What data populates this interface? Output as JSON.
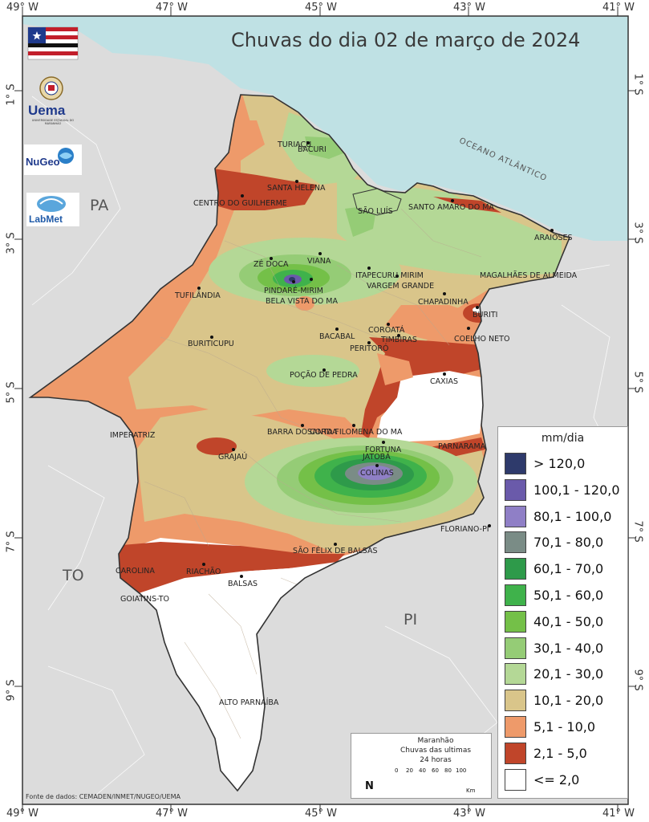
{
  "title": "Chuvas do dia 02 de março de 2024",
  "axes": {
    "lon_ticks": [
      "49° W",
      "47° W",
      "45° W",
      "43° W",
      "41° W"
    ],
    "lat_ticks": [
      "1° S",
      "3° S",
      "5° S",
      "7° S",
      "9° S"
    ]
  },
  "regions": {
    "pa": "PA",
    "to": "TO",
    "pi": "PI",
    "ocean": "OCEANO ATLÂNTICO"
  },
  "logos": {
    "uema": "Uema",
    "uema_sub": "UNIVERSIDADE ESTADUAL DO MARANHÃO",
    "nugeo": "NuGeo",
    "labmet": "LabMet"
  },
  "cities": [
    {
      "name": "TURIAÇU"
    },
    {
      "name": "BACURI"
    },
    {
      "name": "SANTA HELENA"
    },
    {
      "name": "CENTRO DO GUILHERME"
    },
    {
      "name": "SÃO LUÍS"
    },
    {
      "name": "SANTO AMARO DO MA"
    },
    {
      "name": "ARAIOSES"
    },
    {
      "name": "ZÉ DOCA"
    },
    {
      "name": "VIANA"
    },
    {
      "name": "ITAPECURU MIRIM"
    },
    {
      "name": "MAGALHÃES DE ALMEIDA"
    },
    {
      "name": "PINDARÉ-MIRIM"
    },
    {
      "name": "VARGEM GRANDE"
    },
    {
      "name": "TUFILÂNDIA"
    },
    {
      "name": "BELA VISTA DO MA"
    },
    {
      "name": "CHAPADINHA"
    },
    {
      "name": "BURITI"
    },
    {
      "name": "BACABAL"
    },
    {
      "name": "COROATÁ"
    },
    {
      "name": "BURITICUPU"
    },
    {
      "name": "TIMBIRAS"
    },
    {
      "name": "COELHO NETO"
    },
    {
      "name": "PERITORÓ"
    },
    {
      "name": "POÇÃO DE PEDRA"
    },
    {
      "name": "CAXIAS"
    },
    {
      "name": "BARRA DO CORDA"
    },
    {
      "name": "SANTA FILOMENA DO MA"
    },
    {
      "name": "IMPERATRIZ"
    },
    {
      "name": "FORTUNA"
    },
    {
      "name": "PARNARAMA"
    },
    {
      "name": "GRAJAÚ"
    },
    {
      "name": "JATOBÁ"
    },
    {
      "name": "COLINAS"
    },
    {
      "name": "FLORIANO-PI"
    },
    {
      "name": "SÃO FÉLIX DE BALSAS"
    },
    {
      "name": "CAROLINA"
    },
    {
      "name": "RIACHÃO"
    },
    {
      "name": "BALSAS"
    },
    {
      "name": "GOIATINS-TO"
    },
    {
      "name": "ALTO PARNAÍBA"
    }
  ],
  "legend": {
    "title": "mm/dia",
    "items": [
      {
        "label": "> 120,0",
        "color": "#2e3a6b"
      },
      {
        "label": "100,1 - 120,0",
        "color": "#6a5aaa"
      },
      {
        "label": "80,1 - 100,0",
        "color": "#8f7fc6"
      },
      {
        "label": "70,1 - 80,0",
        "color": "#7a8c86"
      },
      {
        "label": "60,1 - 70,0",
        "color": "#2e9a4a"
      },
      {
        "label": "50,1 - 60,0",
        "color": "#3fb24b"
      },
      {
        "label": "40,1 - 50,0",
        "color": "#74c048"
      },
      {
        "label": "30,1 - 40,0",
        "color": "#95cc76"
      },
      {
        "label": "20,1 - 30,0",
        "color": "#b4d896"
      },
      {
        "label": "10,1 - 20,0",
        "color": "#d9c58a"
      },
      {
        "label": "5,1 - 10,0",
        "color": "#ee9a6a"
      },
      {
        "label": "2,1 - 5,0",
        "color": "#c0452a"
      },
      {
        "label": "<= 2,0",
        "color": "#ffffff"
      }
    ]
  },
  "info": {
    "line1": "Maranhão",
    "line2": "Chuvas das ultimas",
    "line3": "24 horas",
    "north": "N",
    "scale": [
      "0",
      "20",
      "40",
      "60",
      "80",
      "100"
    ],
    "scale_unit": "Km"
  },
  "source": "Fonte de dados: CEMADEN/INMET/NUGEO/UEMA",
  "colors": {
    "sea": "#bfe1e4",
    "land_outside": "#dcdcdc",
    "frame": "#333333"
  }
}
